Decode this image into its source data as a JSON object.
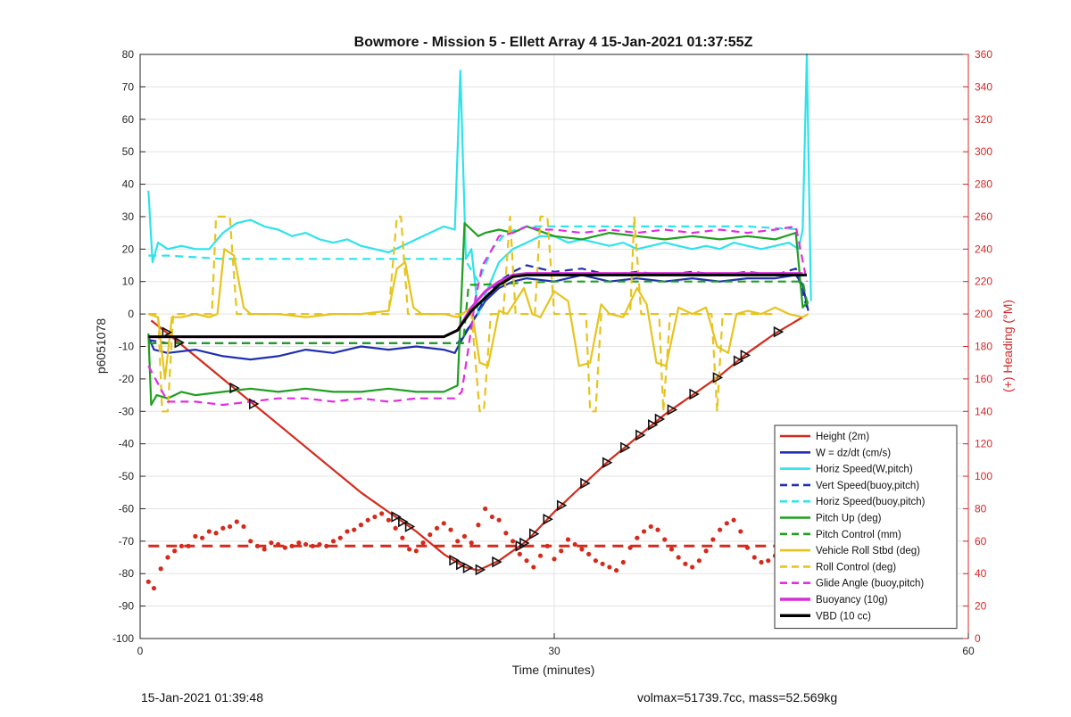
{
  "footer": {
    "timestamp": "15-Jan-2021 01:39:48",
    "summary": "volmax=51739.7cc, mass=52.569kg"
  },
  "chart_data": {
    "type": "line",
    "title": "Bowmore - Mission 5 - Ellett Array 4 15-Jan-2021 01:37:55Z",
    "xlabel": "Time (minutes)",
    "ylabel": "p6051078",
    "y2label": "(+) Heading (°M)",
    "xlim": [
      0,
      60
    ],
    "ylim": [
      -100,
      80
    ],
    "y2lim": [
      0,
      360
    ],
    "xticks": [
      0,
      30,
      60
    ],
    "yticks": [
      -100,
      -90,
      -80,
      -70,
      -60,
      -50,
      -40,
      -30,
      -20,
      -10,
      0,
      10,
      20,
      30,
      40,
      50,
      60,
      70,
      80
    ],
    "y2ticks": [
      0,
      20,
      40,
      60,
      80,
      100,
      120,
      140,
      160,
      180,
      200,
      220,
      240,
      260,
      280,
      300,
      320,
      340,
      360
    ],
    "grid": true,
    "legend_position": "bottom-right",
    "colors": {
      "axis": "#262626",
      "axis_right": "#d62728",
      "grid": "#e3e3e3"
    },
    "series": [
      {
        "name": "Height (2m)",
        "color": "#d42a1c",
        "dash": "solid",
        "width": 2.2,
        "x": [
          0.8,
          2,
          4,
          6,
          8,
          10,
          12,
          14,
          16,
          18,
          20,
          22,
          23.5,
          24.5,
          26,
          28,
          30,
          32,
          34,
          36,
          38,
          40,
          42,
          44,
          46,
          48
        ],
        "y": [
          -2,
          -6,
          -13,
          -20,
          -27,
          -34,
          -41,
          -48,
          -55,
          -61,
          -67,
          -74,
          -78,
          -79,
          -76,
          -70,
          -61,
          -53,
          -45,
          -38,
          -31,
          -25,
          -19,
          -12,
          -6,
          -1
        ]
      },
      {
        "name": "W = dz/dt (cm/s)",
        "color": "#1f2fb0",
        "dash": "solid",
        "width": 2.2,
        "x": [
          0.6,
          1,
          2,
          4,
          6,
          8,
          10,
          12,
          14,
          16,
          18,
          20,
          22,
          22.8,
          23.3,
          24,
          25,
          26,
          27,
          28,
          30,
          32,
          34,
          36,
          38,
          40,
          42,
          44,
          46,
          47.5,
          48,
          48.4
        ],
        "y": [
          -7,
          -11,
          -12,
          -11,
          -13,
          -14,
          -13,
          -11,
          -12,
          -10,
          -11,
          -10,
          -11,
          -12,
          -8,
          -3,
          4,
          8,
          10,
          11,
          10,
          12,
          10,
          11,
          10,
          11,
          10,
          11,
          11,
          12,
          9,
          1
        ]
      },
      {
        "name": "Horiz Speed(W,pitch)",
        "color": "#2ee3ea",
        "dash": "solid",
        "width": 2.2,
        "x": [
          0.6,
          0.9,
          1.3,
          2,
          3,
          4,
          5,
          6,
          7,
          8,
          9,
          10,
          11,
          12,
          13,
          14,
          15,
          16,
          17,
          18,
          19,
          20,
          21,
          22,
          22.8,
          23.2,
          23.6,
          24,
          24.5,
          25,
          26,
          27,
          28,
          29,
          30,
          31,
          32,
          33,
          34,
          35,
          36,
          37,
          38,
          39,
          40,
          41,
          42,
          43,
          44,
          45,
          46,
          47,
          47.7,
          48,
          48.3,
          48.6
        ],
        "y": [
          38,
          16,
          22,
          20,
          21,
          20,
          20,
          25,
          28,
          29,
          27,
          26,
          24,
          25,
          23,
          22,
          23,
          21,
          20,
          19,
          21,
          23,
          25,
          27,
          26,
          75,
          17,
          20,
          0,
          6,
          16,
          20,
          22,
          24,
          24,
          22,
          23,
          22,
          21,
          22,
          20,
          21,
          22,
          21,
          20,
          21,
          20,
          22,
          21,
          20,
          21,
          22,
          20,
          26,
          80,
          4
        ]
      },
      {
        "name": "Vert Speed(buoy,pitch)",
        "color": "#1f2fb0",
        "dash": "dashed",
        "width": 2.2,
        "x": [
          0.6,
          2,
          4,
          6,
          8,
          10,
          12,
          14,
          16,
          18,
          20,
          22,
          23,
          24,
          25,
          26,
          27,
          28,
          30,
          32,
          34,
          36,
          38,
          40,
          42,
          44,
          46,
          47.5,
          48.3
        ],
        "y": [
          -8,
          -9,
          -9,
          -9,
          -9,
          -9,
          -9,
          -9,
          -9,
          -9,
          -9,
          -9,
          -9,
          -3,
          5,
          10,
          13,
          15,
          13,
          14,
          12,
          13,
          12,
          13,
          12,
          13,
          12,
          14,
          2
        ]
      },
      {
        "name": "Horiz Speed(buoy,pitch)",
        "color": "#2ee3ea",
        "dash": "dashed",
        "width": 2.2,
        "x": [
          0.6,
          2,
          6,
          10,
          14,
          18,
          22,
          23.5,
          24.5,
          25.5,
          26.5,
          28,
          32,
          36,
          40,
          44,
          48
        ],
        "y": [
          18,
          18,
          17,
          17,
          17,
          17,
          17,
          17,
          10,
          20,
          25,
          27,
          27,
          27,
          27,
          27,
          26
        ]
      },
      {
        "name": "Pitch Up (deg)",
        "color": "#1f9f1f",
        "dash": "solid",
        "width": 2.2,
        "x": [
          0.6,
          0.8,
          1.2,
          2,
          3,
          4,
          6,
          8,
          10,
          12,
          14,
          16,
          18,
          20,
          22,
          23,
          23.5,
          24,
          24.5,
          25,
          26,
          27,
          28,
          30,
          32,
          34,
          36,
          38,
          40,
          42,
          44,
          46,
          47.5,
          48,
          48.4
        ],
        "y": [
          -6,
          -28,
          -25,
          -26,
          -24,
          -25,
          -24,
          -23,
          -24,
          -23,
          -24,
          -24,
          -23,
          -24,
          -24,
          -22,
          28,
          26,
          24,
          25,
          26,
          25,
          27,
          24,
          23,
          25,
          24,
          23,
          24,
          23,
          24,
          23,
          25,
          2,
          4
        ]
      },
      {
        "name": "Pitch Control (mm)",
        "color": "#1f9f1f",
        "dash": "dashed",
        "width": 2.2,
        "x": [
          0.6,
          1,
          2,
          6,
          10,
          14,
          18,
          22,
          23.4,
          23.8,
          24.5,
          30,
          36,
          42,
          48,
          48.4
        ],
        "y": [
          -9,
          -9,
          -9,
          -9,
          -9,
          -9,
          -9,
          -9,
          -9,
          9,
          9,
          10,
          10,
          10,
          10,
          2
        ]
      },
      {
        "name": "Vehicle Roll Stbd (deg)",
        "color": "#e6c41e",
        "dash": "solid",
        "width": 2.2,
        "x": [
          0.6,
          1.3,
          1.8,
          2.3,
          3,
          4,
          5,
          5.6,
          6.1,
          6.8,
          7.5,
          8,
          10,
          12,
          14,
          16,
          18,
          18.6,
          19.2,
          19.8,
          20.4,
          22,
          23,
          24,
          24.6,
          25.2,
          26,
          26.6,
          27.2,
          27.8,
          28.4,
          29,
          30,
          31,
          31.8,
          32.6,
          33.4,
          34,
          35,
          36,
          36.7,
          37.4,
          38.1,
          39,
          40,
          41,
          41.8,
          42.6,
          43.2,
          44,
          45,
          46,
          47,
          48,
          48.4
        ],
        "y": [
          0,
          -1,
          -20,
          -1,
          -1,
          0,
          -1,
          0,
          20,
          18,
          2,
          0,
          0,
          -1,
          0,
          0,
          1,
          14,
          16,
          2,
          0,
          0,
          -1,
          2,
          -15,
          -16,
          1,
          0,
          4,
          8,
          0,
          -1,
          7,
          4,
          -16,
          -15,
          3,
          0,
          -1,
          8,
          3,
          -15,
          -16,
          2,
          0,
          2,
          -10,
          -12,
          0,
          1,
          0,
          2,
          0,
          -1,
          0
        ]
      },
      {
        "name": "Roll Control (deg)",
        "color": "#e6c41e",
        "dash": "dashed",
        "width": 2.2,
        "x": [
          0.6,
          1.3,
          1.6,
          2,
          2.4,
          3,
          5.2,
          5.5,
          6.5,
          7,
          7.3,
          10,
          14,
          18,
          18.6,
          18.9,
          19.4,
          19.7,
          22,
          24,
          24.6,
          24.9,
          25.4,
          26.3,
          26.8,
          27.2,
          28.6,
          29,
          29.5,
          30,
          32.3,
          32.6,
          33,
          33.4,
          35.5,
          35.8,
          36.3,
          37.6,
          37.9,
          38.4,
          40,
          41.4,
          41.8,
          42.2,
          44,
          46
        ],
        "y": [
          0,
          0,
          -30,
          -30,
          0,
          0,
          0,
          30,
          30,
          0,
          0,
          0,
          0,
          0,
          30,
          30,
          0,
          0,
          0,
          0,
          -30,
          -30,
          0,
          0,
          30,
          0,
          0,
          30,
          30,
          0,
          0,
          -30,
          -30,
          0,
          0,
          30,
          0,
          0,
          -30,
          0,
          0,
          0,
          -30,
          0,
          0,
          0
        ]
      },
      {
        "name": "Glide Angle (buoy,pitch)",
        "color": "#e02ee0",
        "dash": "dashed",
        "width": 2.2,
        "x": [
          0.6,
          2,
          4,
          6,
          8,
          10,
          12,
          14,
          16,
          18,
          20,
          22,
          22.8,
          23.3,
          23.8,
          24.3,
          24.8,
          25.5,
          26,
          27,
          28,
          29,
          30,
          32,
          34,
          36,
          38,
          40,
          42,
          44,
          46,
          47.5,
          48.3
        ],
        "y": [
          -16,
          -27,
          -27,
          -28,
          -27,
          -26,
          -26,
          -27,
          -26,
          -27,
          -26,
          -26,
          -26,
          -24,
          -10,
          5,
          15,
          20,
          24,
          25,
          27,
          26,
          26,
          25,
          26,
          25,
          26,
          25,
          26,
          25,
          26,
          27,
          10
        ]
      },
      {
        "name": "Buoyancy (10g)",
        "color": "#d92ed9",
        "dash": "solid",
        "width": 3,
        "x": [
          0.6,
          2,
          6,
          10,
          14,
          18,
          22,
          23,
          24,
          25,
          26,
          27,
          28,
          32,
          36,
          40,
          44,
          48
        ],
        "y": [
          -7,
          -7,
          -7,
          -7,
          -7,
          -7,
          -7,
          -5,
          2,
          7,
          10,
          12,
          12.5,
          12.5,
          12.5,
          12.5,
          12.5,
          12.5
        ]
      },
      {
        "name": "VBD (10 cc)",
        "color": "#000000",
        "dash": "solid",
        "width": 3,
        "x": [
          0.6,
          2,
          6,
          10,
          14,
          18,
          22,
          23,
          24,
          25,
          26,
          27,
          28,
          32,
          36,
          40,
          44,
          48.3
        ],
        "y": [
          -7,
          -7,
          -7,
          -7,
          -7,
          -7,
          -7,
          -5,
          1,
          5,
          9,
          11.5,
          12,
          12,
          12,
          12,
          12,
          12
        ]
      }
    ],
    "heading_series": {
      "axis": "right",
      "color": "#d42a1c",
      "x": [
        0.6,
        1.0,
        1.5,
        2.0,
        2.5,
        3.0,
        3.5,
        4.0,
        4.5,
        5.0,
        5.5,
        6.0,
        6.5,
        7.0,
        7.5,
        8.0,
        8.5,
        9.0,
        9.5,
        10.0,
        10.5,
        11.0,
        11.5,
        12.0,
        12.5,
        13.0,
        13.5,
        14.0,
        14.5,
        15.0,
        15.5,
        16.0,
        16.5,
        17.0,
        17.5,
        18.0,
        18.5,
        19.0,
        19.5,
        20.0,
        20.5,
        21.0,
        21.5,
        22.0,
        22.5,
        23.0,
        23.5,
        24.0,
        24.5,
        25.0,
        25.5,
        26.0,
        26.5,
        27.0,
        27.5,
        28.0,
        28.5,
        29.0,
        29.5,
        30.0,
        30.5,
        31.0,
        31.5,
        32.0,
        32.5,
        33.0,
        33.5,
        34.0,
        34.5,
        35.0,
        35.5,
        36.0,
        36.5,
        37.0,
        37.5,
        38.0,
        38.5,
        39.0,
        39.5,
        40.0,
        40.5,
        41.0,
        41.5,
        42.0,
        42.5,
        43.0,
        43.5,
        44.0,
        44.5,
        45.0,
        45.5,
        46.0,
        46.5,
        47.0,
        47.5
      ],
      "y": [
        35,
        31,
        43,
        50,
        54,
        57,
        57,
        63,
        62,
        66,
        65,
        68,
        69,
        72,
        69,
        60,
        57,
        55,
        59,
        58,
        56,
        57,
        59,
        58,
        57,
        58,
        57,
        60,
        62,
        66,
        67,
        70,
        73,
        75,
        77,
        73,
        68,
        62,
        55,
        54,
        59,
        64,
        68,
        71,
        67,
        60,
        63,
        59,
        70,
        80,
        75,
        73,
        65,
        60,
        52,
        48,
        44,
        51,
        57,
        49,
        54,
        61,
        58,
        55,
        52,
        48,
        46,
        44,
        42,
        47,
        56,
        62,
        66,
        69,
        67,
        61,
        55,
        50,
        46,
        44,
        48,
        54,
        61,
        67,
        71,
        73,
        66,
        56,
        50,
        47,
        48,
        51,
        52,
        48,
        41
      ],
      "mean": 57
    },
    "markers": {
      "type": "triangle",
      "on_series": "Height (2m)",
      "x": [
        1.9,
        2.8,
        6.8,
        8.2,
        18.5,
        19,
        19.5,
        22.7,
        23.2,
        23.7,
        24.6,
        25.8,
        27.5,
        27.8,
        28.5,
        29.5,
        30.5,
        32.2,
        33.8,
        35.1,
        36.2,
        37.1,
        37.6,
        38.5,
        40.1,
        41.8,
        43.3,
        43.8,
        46.2
      ]
    }
  }
}
